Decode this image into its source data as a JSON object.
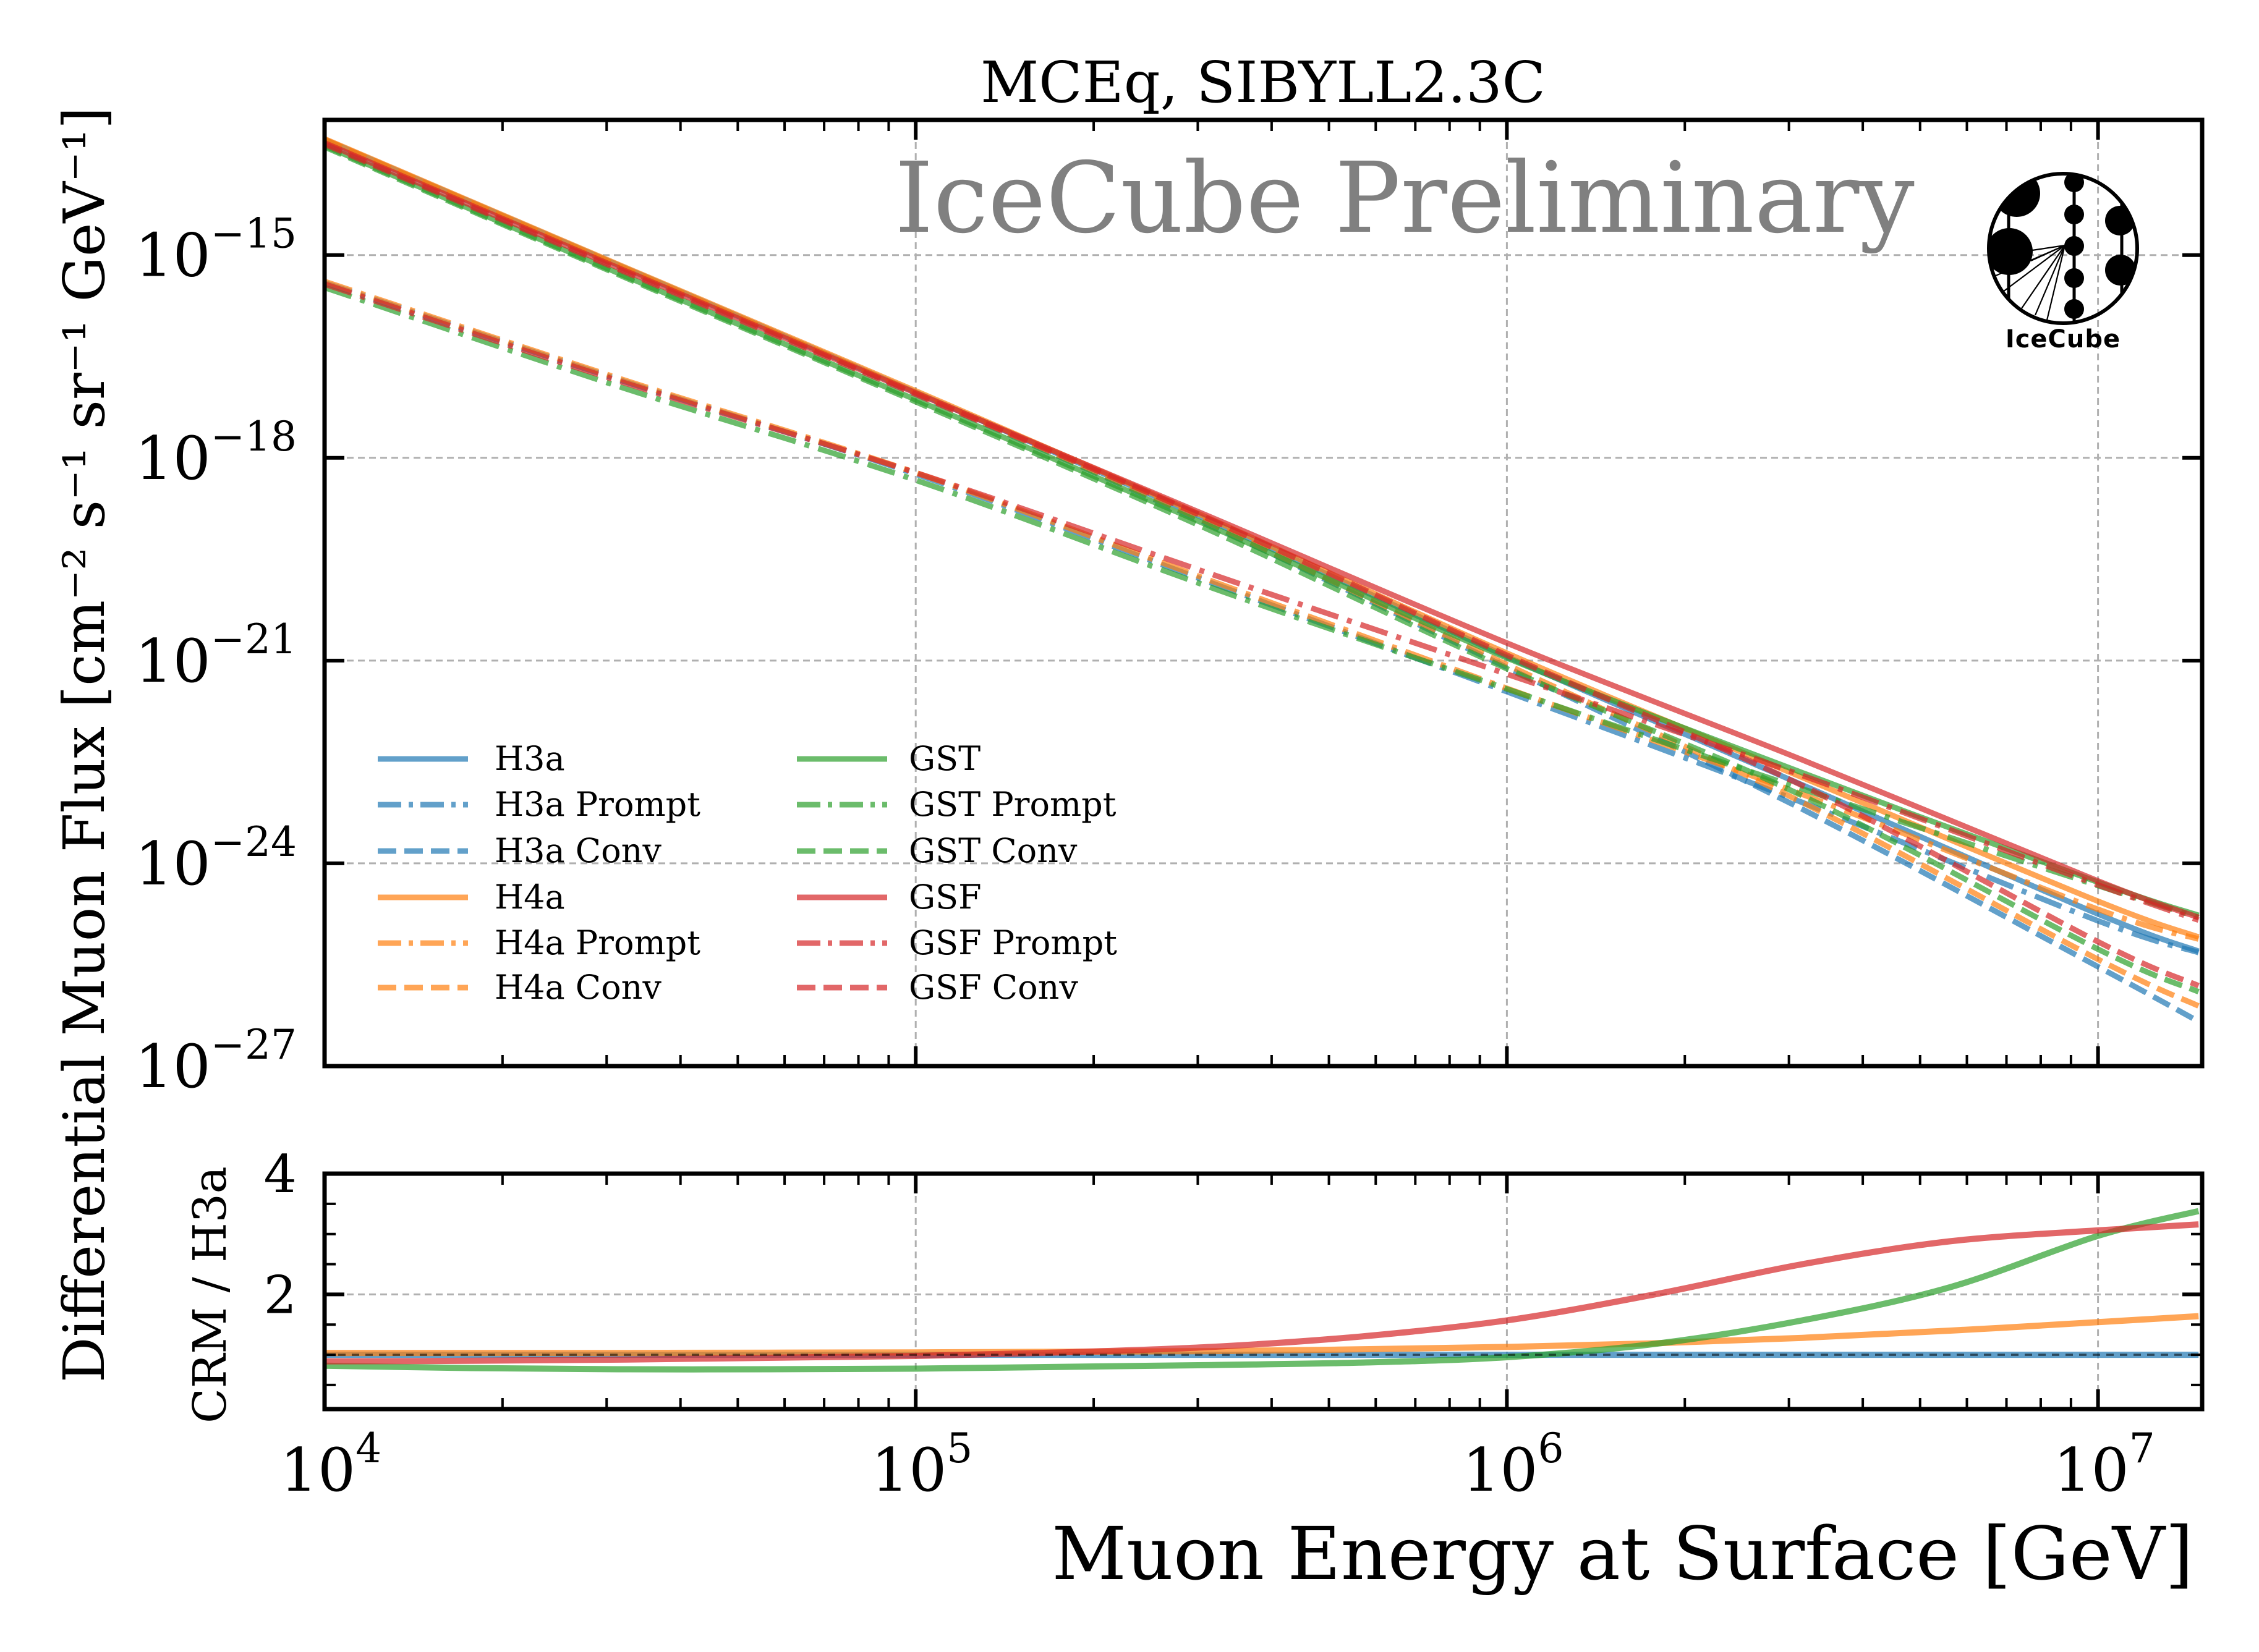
{
  "chart_data": [
    {
      "panel": "main",
      "type": "line",
      "title": "MCEq, SIBYLL2.3C",
      "annotation": "IceCube Preliminary",
      "logo_text": "IceCube",
      "xlabel": "",
      "ylabel": "Differential Muon Flux [cm⁻² s⁻¹ sr⁻¹ GeV⁻¹]",
      "xscale": "log",
      "yscale": "log",
      "xlim": [
        10000,
        15000000
      ],
      "ylim": [
        1e-27,
        1e-13
      ],
      "grid": true,
      "legend_position": "lower-left",
      "legend_columns": 2,
      "y_ticks": [
        {
          "base": "10",
          "exp": "−15",
          "value": 1e-15
        },
        {
          "base": "10",
          "exp": "−18",
          "value": 1e-18
        },
        {
          "base": "10",
          "exp": "−21",
          "value": 1e-21
        },
        {
          "base": "10",
          "exp": "−24",
          "value": 1e-24
        },
        {
          "base": "10",
          "exp": "−27",
          "value": 1e-27
        }
      ],
      "log10_energy": [
        4.0,
        4.5,
        5.0,
        5.5,
        6.0,
        6.5,
        7.0,
        7.17
      ],
      "series": [
        {
          "name": "H3a",
          "model": "H3a",
          "component": "total",
          "color": "#1f77b4",
          "style": "solid",
          "log10_flux": [
            -13.29,
            -15.16,
            -17.03,
            -18.94,
            -20.94,
            -22.84,
            -24.75,
            -25.3
          ]
        },
        {
          "name": "H3a Prompt",
          "model": "H3a",
          "component": "prompt",
          "color": "#1f77b4",
          "style": "dashdot",
          "log10_flux": [
            -15.41,
            -16.85,
            -18.24,
            -19.85,
            -21.46,
            -23.1,
            -24.85,
            -25.32
          ]
        },
        {
          "name": "H3a Conv",
          "model": "H3a",
          "component": "conv",
          "color": "#1f77b4",
          "style": "dashed",
          "log10_flux": [
            -13.3,
            -15.18,
            -17.05,
            -19.0,
            -21.1,
            -23.2,
            -25.53,
            -26.34
          ]
        },
        {
          "name": "H4a",
          "model": "H4a",
          "component": "total",
          "color": "#ff7f0e",
          "style": "solid",
          "log10_flux": [
            -13.28,
            -15.15,
            -17.01,
            -18.91,
            -20.89,
            -22.73,
            -24.56,
            -25.09
          ]
        },
        {
          "name": "H4a Prompt",
          "model": "H4a",
          "component": "prompt",
          "color": "#ff7f0e",
          "style": "dashdot",
          "log10_flux": [
            -15.39,
            -16.83,
            -18.22,
            -19.82,
            -21.41,
            -22.98,
            -24.68,
            -25.12
          ]
        },
        {
          "name": "H4a Conv",
          "model": "H4a",
          "component": "conv",
          "color": "#ff7f0e",
          "style": "dashed",
          "log10_flux": [
            -13.29,
            -15.17,
            -17.04,
            -18.98,
            -21.06,
            -23.1,
            -25.42,
            -26.11
          ]
        },
        {
          "name": "GST",
          "model": "GST",
          "component": "total",
          "color": "#2ca02c",
          "style": "solid",
          "log10_flux": [
            -13.38,
            -15.28,
            -17.14,
            -19.02,
            -20.96,
            -22.66,
            -24.28,
            -24.77
          ]
        },
        {
          "name": "GST Prompt",
          "model": "GST",
          "component": "prompt",
          "color": "#2ca02c",
          "style": "dashdot",
          "log10_flux": [
            -15.48,
            -16.95,
            -18.33,
            -19.92,
            -21.42,
            -22.9,
            -24.33,
            -24.8
          ]
        },
        {
          "name": "GST Conv",
          "model": "GST",
          "component": "conv",
          "color": "#2ca02c",
          "style": "dashed",
          "log10_flux": [
            -13.4,
            -15.3,
            -17.17,
            -19.08,
            -21.12,
            -23.0,
            -25.27,
            -25.9
          ]
        },
        {
          "name": "GSF",
          "model": "GSF",
          "component": "total",
          "color": "#d62728",
          "style": "solid",
          "log10_flux": [
            -13.34,
            -15.2,
            -17.04,
            -18.88,
            -20.74,
            -22.47,
            -24.26,
            -24.8
          ]
        },
        {
          "name": "GSF Prompt",
          "model": "GSF",
          "component": "prompt",
          "color": "#d62728",
          "style": "dashdot",
          "log10_flux": [
            -15.43,
            -16.87,
            -18.22,
            -19.72,
            -21.2,
            -22.7,
            -24.32,
            -24.84
          ]
        },
        {
          "name": "GSF Conv",
          "model": "GSF",
          "component": "conv",
          "color": "#d62728",
          "style": "dashed",
          "log10_flux": [
            -13.36,
            -15.22,
            -17.06,
            -18.92,
            -20.92,
            -22.85,
            -25.16,
            -25.81
          ]
        }
      ]
    },
    {
      "panel": "ratio",
      "type": "line",
      "xlabel": "Muon Energy at Surface [GeV]",
      "ylabel": "CRM / H3a",
      "xscale": "log",
      "yscale": "linear",
      "xlim": [
        10000,
        15000000
      ],
      "ylim": [
        0.1,
        4.0
      ],
      "grid": true,
      "reference_line": 1.0,
      "y_ticks": [
        {
          "label": "2",
          "value": 2
        },
        {
          "label": "4",
          "value": 4
        }
      ],
      "y_minor_step": 0.5,
      "x_ticks": [
        {
          "base": "10",
          "exp": "4",
          "value": 10000
        },
        {
          "base": "10",
          "exp": "5",
          "value": 100000
        },
        {
          "base": "10",
          "exp": "6",
          "value": 1000000
        },
        {
          "base": "10",
          "exp": "7",
          "value": 10000000
        }
      ],
      "log10_energy": [
        4.0,
        4.25,
        4.5,
        4.75,
        5.0,
        5.25,
        5.5,
        5.75,
        6.0,
        6.25,
        6.5,
        6.75,
        7.0,
        7.17
      ],
      "series": [
        {
          "name": "H3a",
          "color": "#1f77b4",
          "values": [
            1,
            1,
            1,
            1,
            1,
            1,
            1,
            1,
            1,
            1,
            1,
            1,
            1,
            1
          ]
        },
        {
          "name": "H4a",
          "color": "#ff7f0e",
          "values": [
            1.03,
            1.03,
            1.03,
            1.035,
            1.04,
            1.05,
            1.06,
            1.09,
            1.13,
            1.19,
            1.28,
            1.4,
            1.54,
            1.64
          ]
        },
        {
          "name": "GST",
          "color": "#2ca02c",
          "values": [
            0.82,
            0.78,
            0.76,
            0.76,
            0.77,
            0.8,
            0.83,
            0.87,
            0.96,
            1.18,
            1.57,
            2.12,
            2.97,
            3.38
          ]
        },
        {
          "name": "GSF",
          "color": "#d62728",
          "values": [
            0.89,
            0.9,
            0.92,
            0.95,
            0.98,
            1.04,
            1.13,
            1.3,
            1.57,
            2.0,
            2.5,
            2.88,
            3.06,
            3.16
          ]
        }
      ]
    }
  ]
}
